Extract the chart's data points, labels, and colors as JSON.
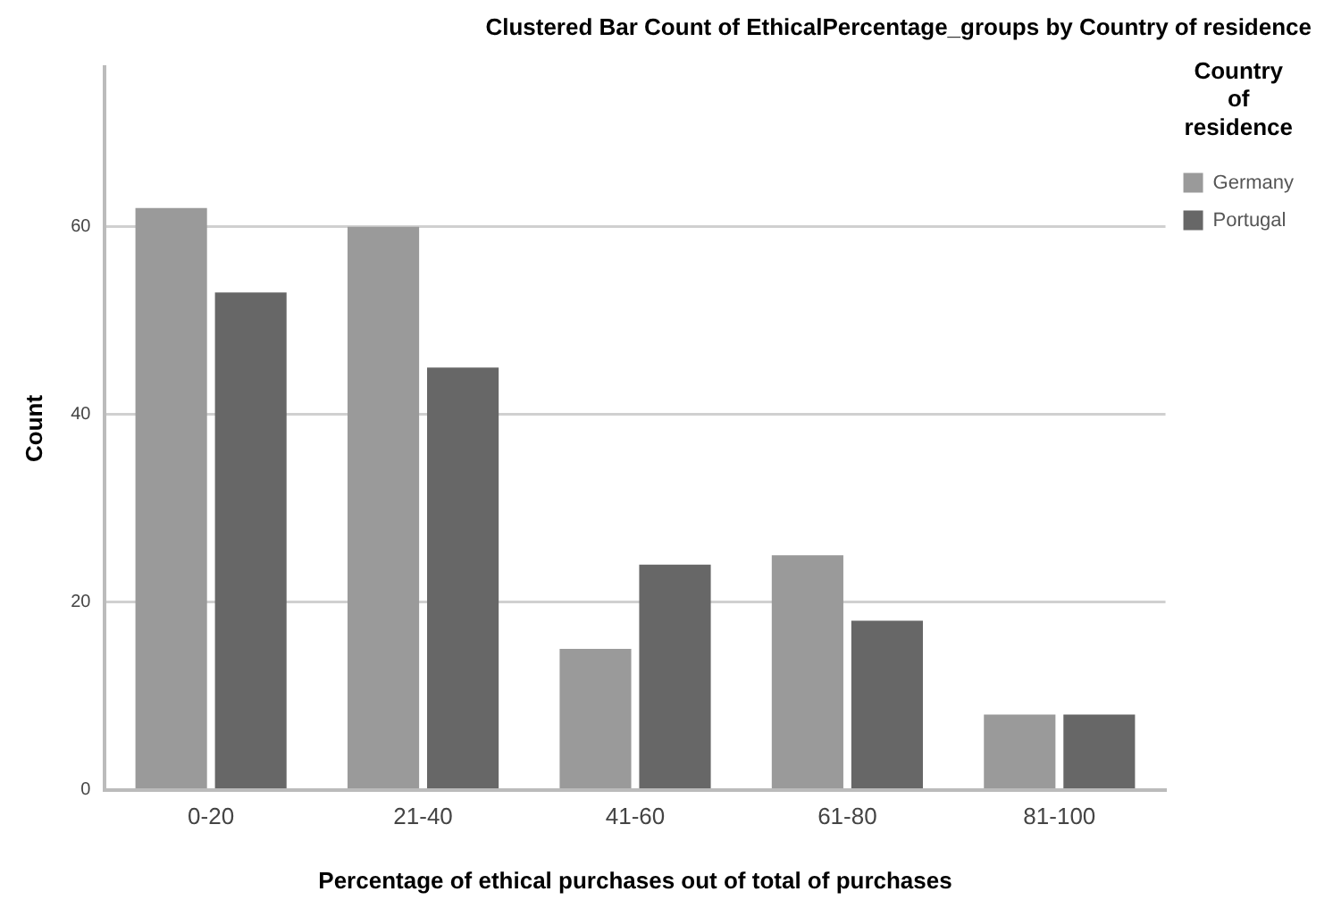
{
  "chart_data": {
    "type": "bar",
    "title": "Clustered Bar Count of EthicalPercentage_groups by Country of residence",
    "xlabel": "Percentage of ethical purchases out of total of purchases",
    "ylabel": "Count",
    "legend_title": "Country of residence",
    "categories": [
      "0-20",
      "21-40",
      "41-60",
      "61-80",
      "81-100"
    ],
    "series": [
      {
        "name": "Germany",
        "color": "#9a9a9a",
        "values": [
          62,
          60,
          15,
          25,
          8
        ]
      },
      {
        "name": "Portugal",
        "color": "#676767",
        "values": [
          53,
          45,
          24,
          18,
          8
        ]
      }
    ],
    "ylim": [
      0,
      77
    ],
    "yticks": [
      0,
      20,
      40,
      60
    ],
    "grid": "y",
    "legend": "right"
  }
}
